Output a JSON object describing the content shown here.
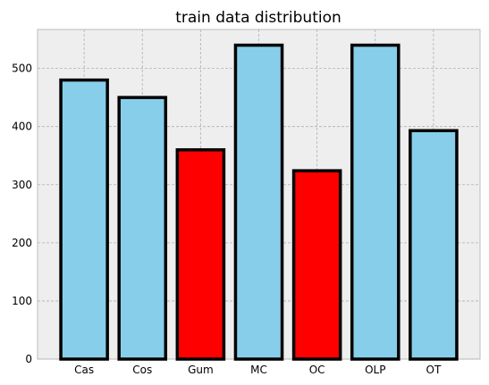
{
  "chart_data": {
    "type": "bar",
    "title": "train data distribution",
    "xlabel": "",
    "ylabel": "",
    "categories": [
      "Cas",
      "Cos",
      "Gum",
      "MC",
      "OC",
      "OLP",
      "OT"
    ],
    "values": [
      480,
      450,
      360,
      540,
      324,
      540,
      393
    ],
    "bar_colors": [
      "#87ceeb",
      "#87ceeb",
      "#ff0000",
      "#87ceeb",
      "#ff0000",
      "#87ceeb",
      "#87ceeb"
    ],
    "edge_color": "#000000",
    "ylim": [
      0,
      567
    ],
    "yticks": [
      0,
      100,
      200,
      300,
      400,
      500
    ],
    "ytick_labels": [
      "0",
      "100",
      "200",
      "300",
      "400",
      "500"
    ],
    "grid": true,
    "background_color": "#eeeeee"
  }
}
